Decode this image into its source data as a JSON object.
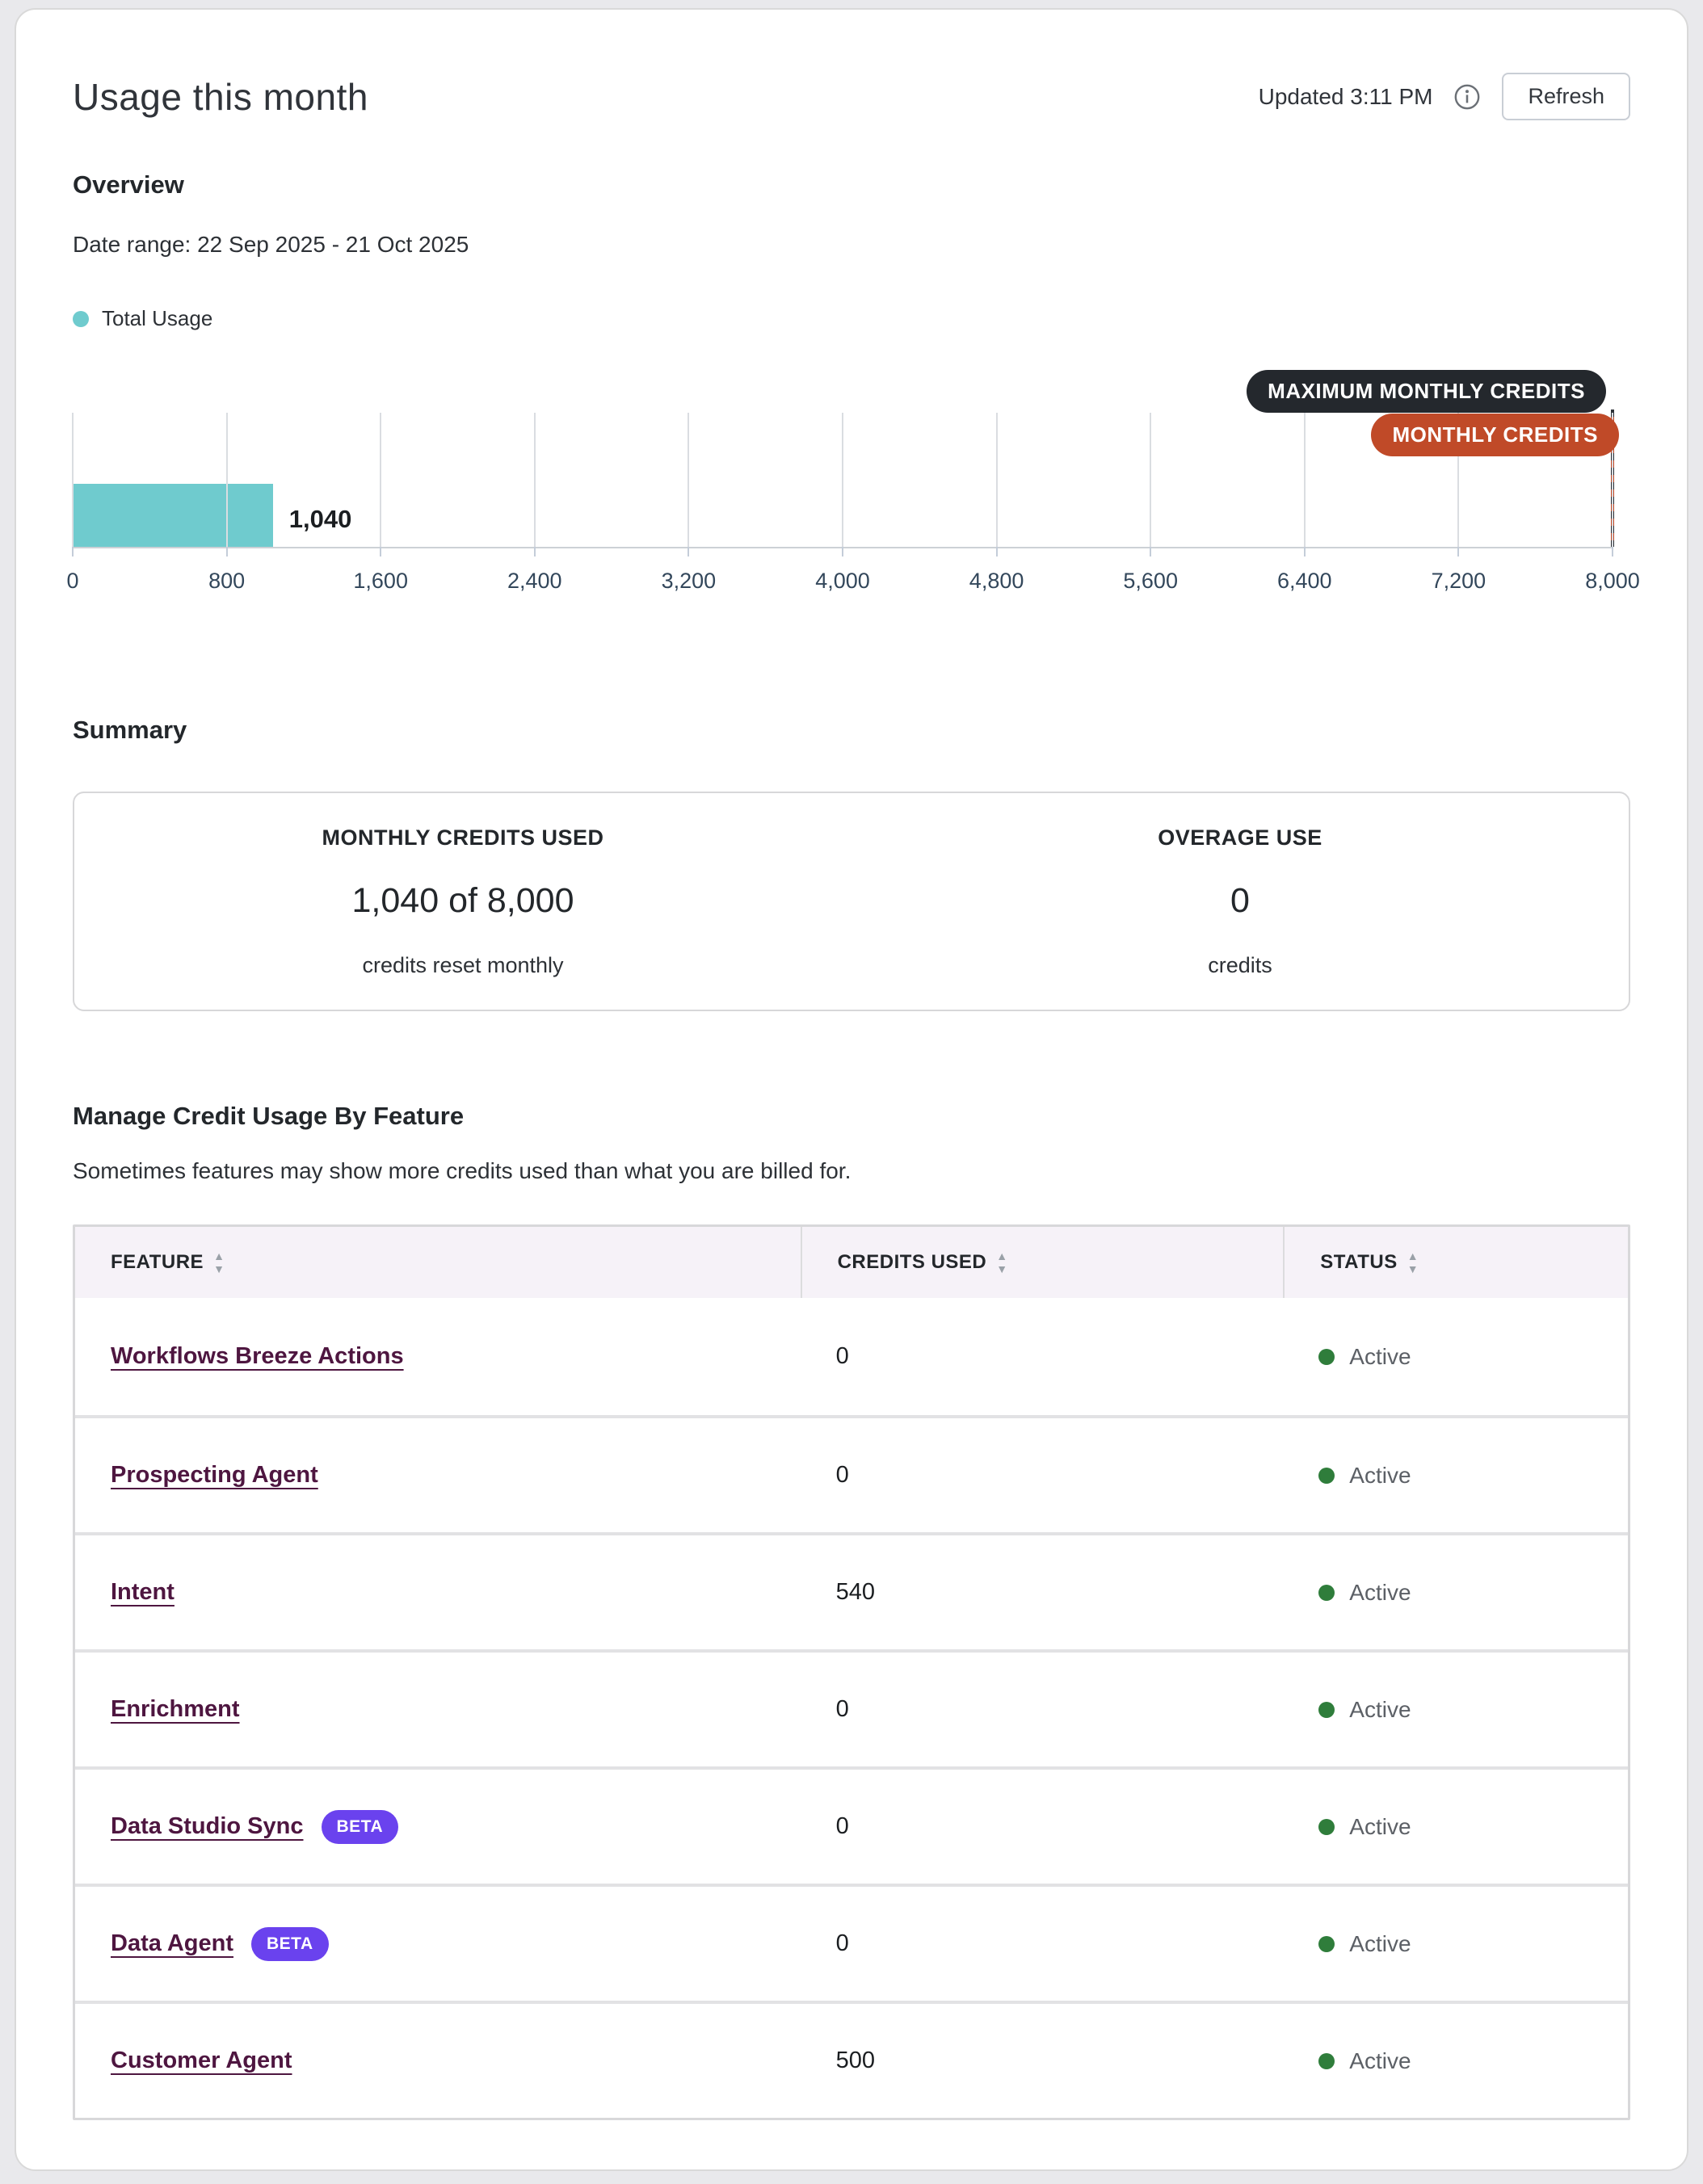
{
  "header": {
    "title": "Usage this month",
    "updated": "Updated 3:11 PM",
    "refresh_label": "Refresh"
  },
  "overview": {
    "heading": "Overview",
    "date_range": "Date range: 22 Sep 2025 - 21 Oct 2025",
    "legend": "Total Usage",
    "max_pill": "MAXIMUM MONTHLY CREDITS",
    "monthly_pill": "MONTHLY CREDITS"
  },
  "chart_data": {
    "type": "bar",
    "orientation": "horizontal",
    "title": "Total Usage this month",
    "series": [
      {
        "name": "Total Usage",
        "values": [
          1040
        ]
      }
    ],
    "value": 1040,
    "bar_label": "1,040",
    "xlim": [
      0,
      8000
    ],
    "ticks": [
      "0",
      "800",
      "1,600",
      "2,400",
      "3,200",
      "4,000",
      "4,800",
      "5,600",
      "6,400",
      "7,200",
      "8,000"
    ],
    "grid": true,
    "marker_value": 8000,
    "marker_labels": [
      "MAXIMUM MONTHLY CREDITS",
      "MONTHLY CREDITS"
    ],
    "bar_color": "#6fcbce"
  },
  "summary": {
    "heading": "Summary",
    "cards": [
      {
        "label": "MONTHLY CREDITS USED",
        "value": "1,040 of 8,000",
        "caption": "credits reset monthly"
      },
      {
        "label": "OVERAGE USE",
        "value": "0",
        "caption": "credits"
      }
    ]
  },
  "features": {
    "heading": "Manage Credit Usage By Feature",
    "subtext": "Sometimes features may show more credits used than what you are billed for.",
    "columns": [
      "FEATURE",
      "CREDITS USED",
      "STATUS"
    ],
    "rows": [
      {
        "feature": "Workflows Breeze Actions",
        "beta": null,
        "credits": "0",
        "status": "Active"
      },
      {
        "feature": "Prospecting Agent",
        "beta": null,
        "credits": "0",
        "status": "Active"
      },
      {
        "feature": "Intent",
        "beta": null,
        "credits": "540",
        "status": "Active"
      },
      {
        "feature": "Enrichment",
        "beta": null,
        "credits": "0",
        "status": "Active"
      },
      {
        "feature": "Data Studio Sync",
        "beta": "BETA",
        "credits": "0",
        "status": "Active"
      },
      {
        "feature": "Data Agent",
        "beta": "BETA",
        "credits": "0",
        "status": "Active"
      },
      {
        "feature": "Customer Agent",
        "beta": null,
        "credits": "500",
        "status": "Active"
      }
    ]
  },
  "colors": {
    "bar_teal": "#6fcbce",
    "pill_dark_bg": "#24282d",
    "pill_orange_bg": "#c04a28",
    "beta_badge_bg": "#6a42ee",
    "feature_link": "#4e1640",
    "status_green": "#2f7d3b",
    "axis_text": "#33475b",
    "table_header_bg": "#f6f2f8"
  }
}
